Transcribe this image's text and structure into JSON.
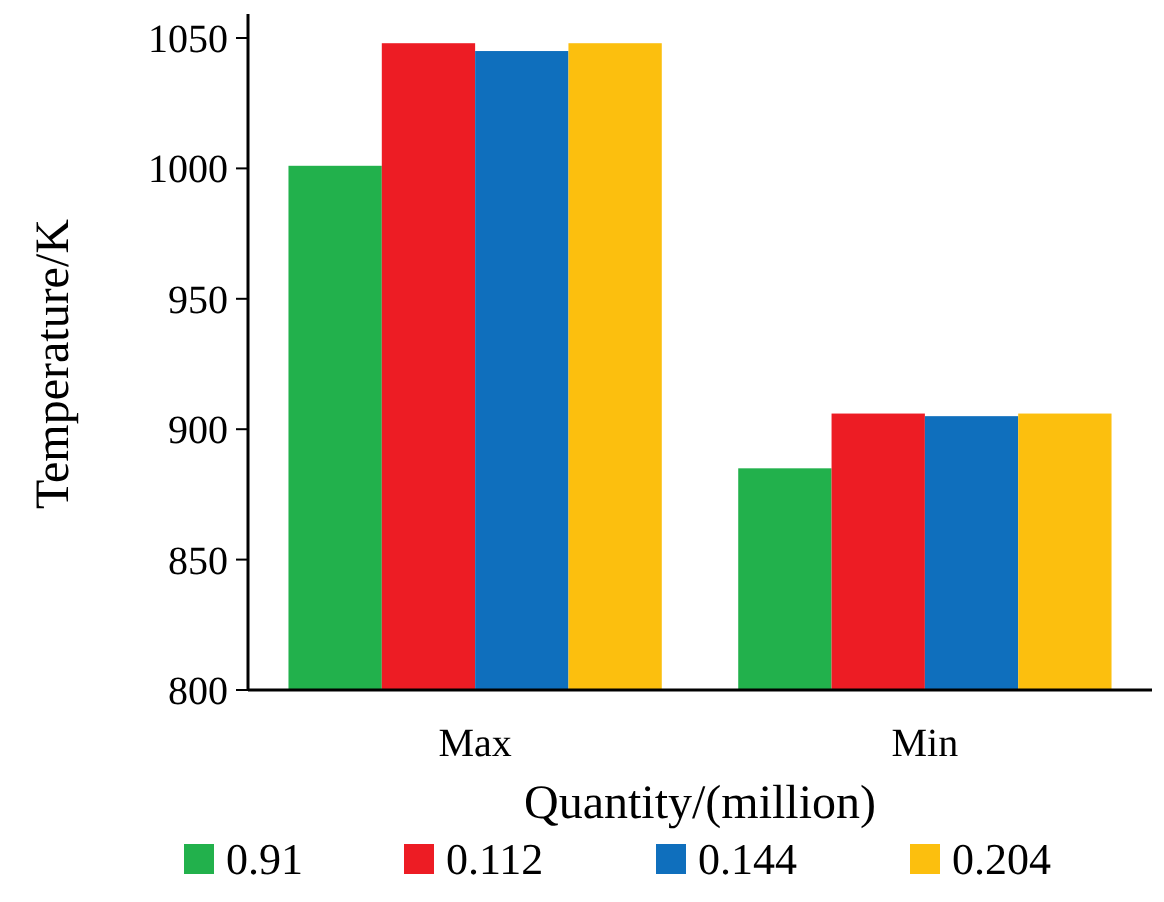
{
  "chart_data": {
    "type": "bar",
    "xlabel": "Quantity/(million)",
    "ylabel": "Temperature/K",
    "categories": [
      "Max",
      "Min"
    ],
    "series": [
      {
        "name": "0.91",
        "color": "#22b14c",
        "values": [
          1001,
          885
        ]
      },
      {
        "name": "0.112",
        "color": "#ed1c24",
        "values": [
          1048,
          906
        ]
      },
      {
        "name": "0.144",
        "color": "#0f6fbd",
        "values": [
          1045,
          905
        ]
      },
      {
        "name": "0.204",
        "color": "#fcbf0e",
        "values": [
          1048,
          906
        ]
      }
    ],
    "ylim": [
      800,
      1050
    ],
    "yticks": [
      800,
      850,
      900,
      950,
      1000,
      1050
    ],
    "grid": false,
    "legend": "bottom"
  }
}
